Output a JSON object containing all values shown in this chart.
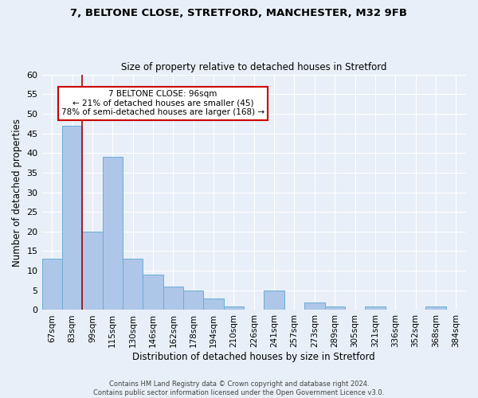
{
  "title_line1": "7, BELTONE CLOSE, STRETFORD, MANCHESTER, M32 9FB",
  "title_line2": "Size of property relative to detached houses in Stretford",
  "xlabel": "Distribution of detached houses by size in Stretford",
  "ylabel": "Number of detached properties",
  "categories": [
    "67sqm",
    "83sqm",
    "99sqm",
    "115sqm",
    "130sqm",
    "146sqm",
    "162sqm",
    "178sqm",
    "194sqm",
    "210sqm",
    "226sqm",
    "241sqm",
    "257sqm",
    "273sqm",
    "289sqm",
    "305sqm",
    "321sqm",
    "336sqm",
    "352sqm",
    "368sqm",
    "384sqm"
  ],
  "values": [
    13,
    47,
    20,
    39,
    13,
    9,
    6,
    5,
    3,
    1,
    0,
    5,
    0,
    2,
    1,
    0,
    1,
    0,
    0,
    1,
    0
  ],
  "bar_color": "#aec6e8",
  "bar_edge_color": "#6aaed6",
  "marker_line_color": "#aa0000",
  "annotation_text": "7 BELTONE CLOSE: 96sqm\n← 21% of detached houses are smaller (45)\n78% of semi-detached houses are larger (168) →",
  "annotation_box_color": "#ffffff",
  "annotation_box_edge_color": "#cc0000",
  "ylim": [
    0,
    60
  ],
  "yticks": [
    0,
    5,
    10,
    15,
    20,
    25,
    30,
    35,
    40,
    45,
    50,
    55,
    60
  ],
  "background_color": "#e8eff8",
  "grid_color": "#ffffff",
  "footer_line1": "Contains HM Land Registry data © Crown copyright and database right 2024.",
  "footer_line2": "Contains public sector information licensed under the Open Government Licence v3.0."
}
